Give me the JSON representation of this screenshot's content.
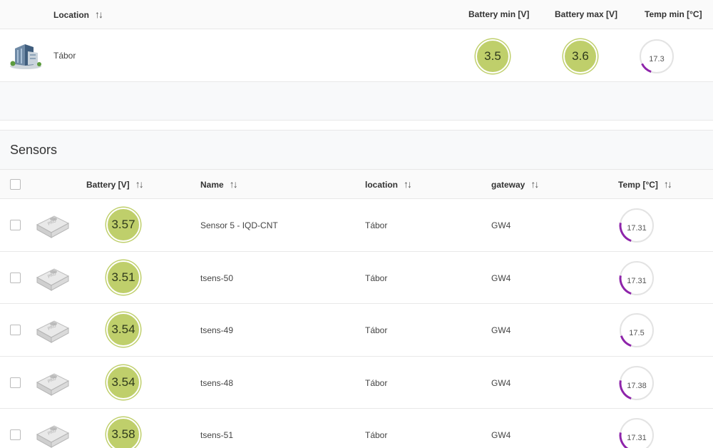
{
  "locations_table": {
    "columns": {
      "location": "Location",
      "battery_min": "Battery min [V]",
      "battery_max": "Battery max [V]",
      "temp_min": "Temp min [°C]"
    },
    "rows": [
      {
        "location": "Tábor",
        "battery_min": "3.5",
        "battery_max": "3.6",
        "temp_min": "17.3",
        "temp_fraction": 0.12,
        "image_icon": "building-icon"
      }
    ]
  },
  "sensors": {
    "title": "Sensors",
    "columns": {
      "battery": "Battery [V]",
      "name": "Name",
      "location": "location",
      "gateway": "gateway",
      "temp": "Temp [°C]"
    },
    "rows": [
      {
        "battery": "3.57",
        "name": "Sensor 5 - IQD-CNT",
        "location": "Tábor",
        "gateway": "GW4",
        "temp": "17.31",
        "temp_fraction": 0.22
      },
      {
        "battery": "3.51",
        "name": "tsens-50",
        "location": "Tábor",
        "gateway": "GW4",
        "temp": "17.31",
        "temp_fraction": 0.22
      },
      {
        "battery": "3.54",
        "name": "tsens-49",
        "location": "Tábor",
        "gateway": "GW4",
        "temp": "17.5",
        "temp_fraction": 0.14
      },
      {
        "battery": "3.54",
        "name": "tsens-48",
        "location": "Tábor",
        "gateway": "GW4",
        "temp": "17.38",
        "temp_fraction": 0.22
      },
      {
        "battery": "3.58",
        "name": "tsens-51",
        "location": "Tábor",
        "gateway": "GW4",
        "temp": "17.31",
        "temp_fraction": 0.22
      }
    ]
  },
  "colors": {
    "battery_fill": "#bfcf6b",
    "gauge_arc": "#8e24aa",
    "gauge_track": "#e3e3e3",
    "sort_icon": "sort-arrows-icon"
  }
}
